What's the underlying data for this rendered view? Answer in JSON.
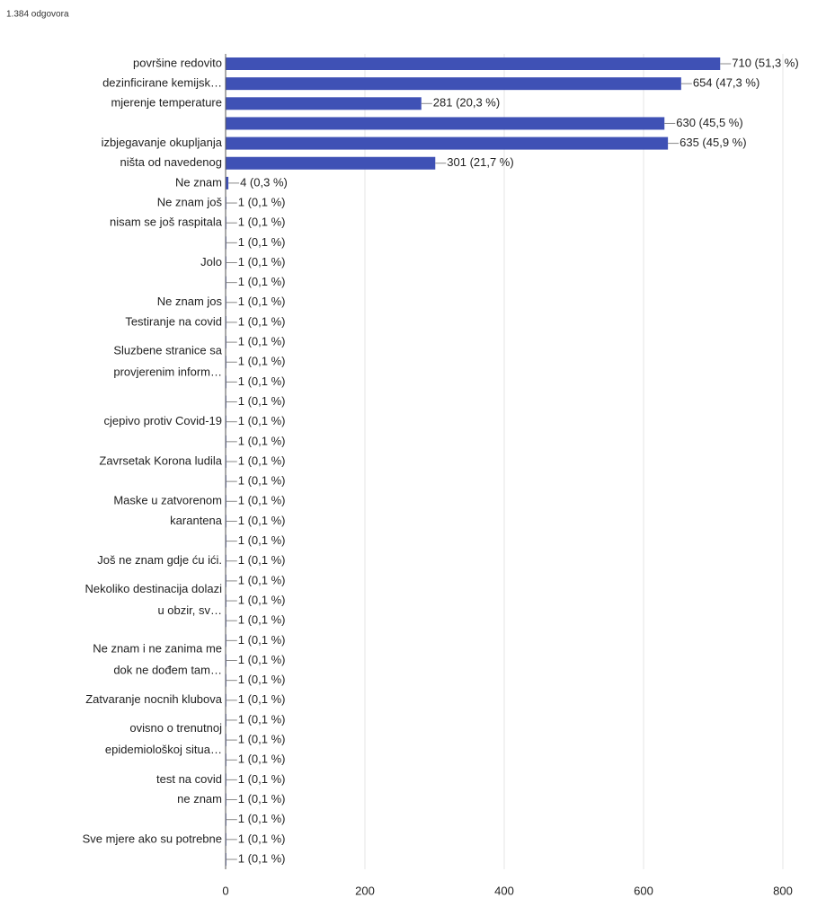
{
  "subtitle": "1.384 odgovora",
  "chart_data": {
    "type": "bar",
    "orientation": "horizontal",
    "color": "#3f51b5",
    "grid": true,
    "xlim": [
      0,
      800
    ],
    "xticks": [
      0,
      200,
      400,
      600,
      800
    ],
    "categories": [
      "površine redovito",
      "dezinficirane kemijsk…",
      "mjerenje temperature",
      null,
      "izbjegavanje okupljanja",
      "ništa od navedenog",
      "Ne znam",
      "Ne znam još",
      "nisam se još raspitala",
      null,
      "Jolo",
      null,
      "Ne znam jos",
      "Testiranje na covid",
      null,
      [
        "Sluzbene stranice sa",
        "provjerenim inform…"
      ],
      null,
      null,
      "cjepivo protiv Covid-19",
      null,
      "Zavrsetak Korona ludila",
      null,
      "Maske u zatvorenom",
      "karantena",
      null,
      "Još ne znam gdje ću ići.",
      null,
      [
        "Nekoliko destinacija dolazi",
        "u obzir, sv…"
      ],
      null,
      null,
      [
        "Ne znam i ne zanima me",
        "dok ne dođem tam…"
      ],
      null,
      "Zatvaranje nocnih klubova",
      null,
      [
        "ovisno o trenutnoj",
        "epidemiološkoj situa…"
      ],
      null,
      "test na covid",
      "ne znam",
      null,
      "Sve mjere ako su potrebne",
      null
    ],
    "values": [
      710,
      654,
      281,
      630,
      635,
      301,
      4,
      1,
      1,
      1,
      1,
      1,
      1,
      1,
      1,
      1,
      1,
      1,
      1,
      1,
      1,
      1,
      1,
      1,
      1,
      1,
      1,
      1,
      1,
      1,
      1,
      1,
      1,
      1,
      1,
      1,
      1,
      1,
      1,
      1,
      1
    ],
    "value_labels": [
      "710 (51,3 %)",
      "654 (47,3 %)",
      "281 (20,3 %)",
      "630 (45,5 %)",
      "635 (45,9 %)",
      "301 (21,7 %)",
      "4 (0,3 %)",
      "1 (0,1 %)",
      "1 (0,1 %)",
      "1 (0,1 %)",
      "1 (0,1 %)",
      "1 (0,1 %)",
      "1 (0,1 %)",
      "1 (0,1 %)",
      "1 (0,1 %)",
      "1 (0,1 %)",
      "1 (0,1 %)",
      "1 (0,1 %)",
      "1 (0,1 %)",
      "1 (0,1 %)",
      "1 (0,1 %)",
      "1 (0,1 %)",
      "1 (0,1 %)",
      "1 (0,1 %)",
      "1 (0,1 %)",
      "1 (0,1 %)",
      "1 (0,1 %)",
      "1 (0,1 %)",
      "1 (0,1 %)",
      "1 (0,1 %)",
      "1 (0,1 %)",
      "1 (0,1 %)",
      "1 (0,1 %)",
      "1 (0,1 %)",
      "1 (0,1 %)",
      "1 (0,1 %)",
      "1 (0,1 %)",
      "1 (0,1 %)",
      "1 (0,1 %)",
      "1 (0,1 %)",
      "1 (0,1 %)"
    ]
  }
}
